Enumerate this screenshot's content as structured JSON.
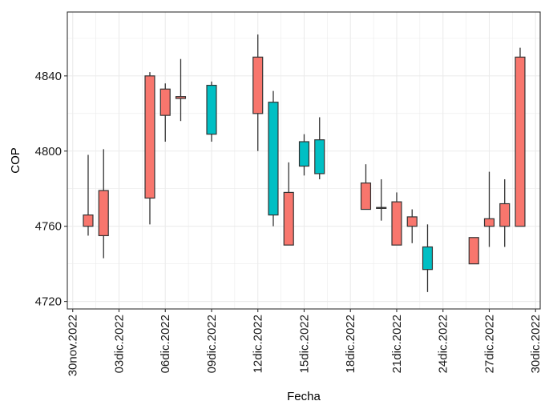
{
  "chart_data": {
    "type": "candlestick",
    "xlabel": "Fecha",
    "ylabel": "COP",
    "ylim": [
      4716,
      4874
    ],
    "yticks": [
      4720,
      4760,
      4800,
      4840
    ],
    "x_ticks": [
      "30nov.2022",
      "03dic.2022",
      "06dic.2022",
      "09dic.2022",
      "12dic.2022",
      "15dic.2022",
      "18dic.2022",
      "21dic.2022",
      "24dic.2022",
      "27dic.2022",
      "30dic.2022"
    ],
    "x_tick_days": [
      0,
      3,
      6,
      9,
      12,
      15,
      18,
      21,
      24,
      27,
      30
    ],
    "xlim": [
      -0.35,
      30.3
    ],
    "grid": true,
    "legend": "none",
    "colors": {
      "down": "#F8766D",
      "up": "#00BFC4",
      "line": "#333333",
      "grid": "#EBEBEB",
      "border": "#333333"
    },
    "candles": [
      {
        "date": "01dic.2022",
        "day": 1,
        "open": 4766,
        "close": 4760,
        "high": 4798,
        "low": 4755
      },
      {
        "date": "02dic.2022",
        "day": 2,
        "open": 4779,
        "close": 4755,
        "high": 4801,
        "low": 4743
      },
      {
        "date": "05dic.2022",
        "day": 5,
        "open": 4840,
        "close": 4775,
        "high": 4842,
        "low": 4761
      },
      {
        "date": "06dic.2022",
        "day": 6,
        "open": 4833,
        "close": 4819,
        "high": 4836,
        "low": 4805
      },
      {
        "date": "07dic.2022",
        "day": 7,
        "open": 4829,
        "close": 4828,
        "high": 4849,
        "low": 4816
      },
      {
        "date": "09dic.2022",
        "day": 9,
        "open": 4809,
        "close": 4835,
        "high": 4837,
        "low": 4805
      },
      {
        "date": "12dic.2022",
        "day": 12,
        "open": 4850,
        "close": 4820,
        "high": 4862,
        "low": 4800
      },
      {
        "date": "13dic.2022",
        "day": 13,
        "open": 4766,
        "close": 4826,
        "high": 4832,
        "low": 4760
      },
      {
        "date": "14dic.2022",
        "day": 14,
        "open": 4778,
        "close": 4750,
        "high": 4794,
        "low": 4750
      },
      {
        "date": "15dic.2022",
        "day": 15,
        "open": 4792,
        "close": 4805,
        "high": 4809,
        "low": 4787
      },
      {
        "date": "16dic.2022",
        "day": 16,
        "open": 4788,
        "close": 4806,
        "high": 4818,
        "low": 4785
      },
      {
        "date": "19dic.2022",
        "day": 19,
        "open": 4783,
        "close": 4769,
        "high": 4793,
        "low": 4769
      },
      {
        "date": "20dic.2022",
        "day": 20,
        "open": 4770,
        "close": 4769.5,
        "high": 4785,
        "low": 4763
      },
      {
        "date": "21dic.2022",
        "day": 21,
        "open": 4773,
        "close": 4750,
        "high": 4778,
        "low": 4750
      },
      {
        "date": "22dic.2022",
        "day": 22,
        "open": 4765,
        "close": 4760,
        "high": 4769,
        "low": 4751
      },
      {
        "date": "23dic.2022",
        "day": 23,
        "open": 4737,
        "close": 4749,
        "high": 4761,
        "low": 4725
      },
      {
        "date": "26dic.2022",
        "day": 26,
        "open": 4754,
        "close": 4740,
        "high": 4754,
        "low": 4740
      },
      {
        "date": "27dic.2022",
        "day": 27,
        "open": 4764,
        "close": 4760,
        "high": 4789,
        "low": 4749
      },
      {
        "date": "28dic.2022",
        "day": 28,
        "open": 4772,
        "close": 4760,
        "high": 4785,
        "low": 4749
      },
      {
        "date": "29dic.2022",
        "day": 29,
        "open": 4850,
        "close": 4760,
        "high": 4855,
        "low": 4760
      }
    ]
  }
}
